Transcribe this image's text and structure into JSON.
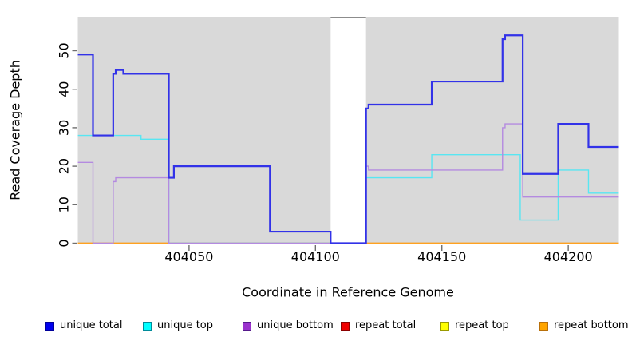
{
  "chart_data": {
    "type": "line",
    "step": true,
    "title": "",
    "xlabel": "Coordinate in Reference Genome",
    "ylabel": "Read Coverage Depth",
    "xlim": [
      404006,
      404220
    ],
    "ylim": [
      0,
      59
    ],
    "xticks": [
      404050,
      404100,
      404150,
      404200
    ],
    "yticks": [
      0,
      10,
      20,
      30,
      40,
      50
    ],
    "grid": "off",
    "plot_bg": "#d9d9d9",
    "tick_color": "#6e6e6e",
    "gap": {
      "x_start": 404106,
      "x_end": 404120,
      "fill": "#ffffff",
      "top_border": "#8c8c8c",
      "note": "white masked region; unique-total line crosses it at depth 0"
    },
    "zero_overlap_highlight": {
      "x_start": 404042,
      "x_end": 404106,
      "color": "#8fd89f",
      "note": "unique-top and repeat lines overlap at depth 0, rendering light green"
    },
    "series": [
      {
        "name": "unique total",
        "color": "#3232e8",
        "width": 2.2,
        "segments": [
          {
            "points": [
              [
                404006,
                49
              ],
              [
                404012,
                28
              ],
              [
                404020,
                44
              ],
              [
                404021,
                45
              ],
              [
                404024,
                44
              ],
              [
                404042,
                17
              ],
              [
                404044,
                20
              ],
              [
                404082,
                3
              ],
              [
                404106,
                0
              ],
              [
                404120,
                35
              ],
              [
                404121,
                36
              ],
              [
                404146,
                42
              ],
              [
                404174,
                53
              ],
              [
                404175,
                54
              ],
              [
                404182,
                18
              ],
              [
                404196,
                31
              ],
              [
                404208,
                25
              ]
            ],
            "end": 404220
          }
        ]
      },
      {
        "name": "unique top",
        "color": "#58e6f2",
        "width": 1.4,
        "segments": [
          {
            "points": [
              [
                404006,
                28
              ],
              [
                404031,
                27
              ],
              [
                404042,
                0
              ]
            ],
            "end": 404106
          },
          {
            "points": [
              [
                404120,
                17
              ],
              [
                404146,
                23
              ],
              [
                404181,
                6
              ],
              [
                404196,
                19
              ],
              [
                404208,
                13
              ]
            ],
            "end": 404220
          }
        ]
      },
      {
        "name": "unique bottom",
        "color": "#b48ae0",
        "width": 1.4,
        "segments": [
          {
            "points": [
              [
                404006,
                21
              ],
              [
                404012,
                0
              ],
              [
                404020,
                16
              ],
              [
                404021,
                17
              ],
              [
                404042,
                0
              ]
            ],
            "end": 404106
          },
          {
            "points": [
              [
                404120,
                20
              ],
              [
                404121,
                19
              ],
              [
                404174,
                30
              ],
              [
                404175,
                31
              ],
              [
                404182,
                12
              ]
            ],
            "end": 404220
          }
        ]
      },
      {
        "name": "repeat total",
        "color": "#e00000",
        "width": 1.3,
        "segments": [
          {
            "points": [
              [
                404006,
                0
              ]
            ],
            "end": 404106
          },
          {
            "points": [
              [
                404120,
                0
              ]
            ],
            "end": 404220
          }
        ]
      },
      {
        "name": "repeat top",
        "color": "#ffff00",
        "width": 1.3,
        "segments": [
          {
            "points": [
              [
                404006,
                0
              ]
            ],
            "end": 404106
          },
          {
            "points": [
              [
                404120,
                0
              ]
            ],
            "end": 404220
          }
        ]
      },
      {
        "name": "repeat bottom",
        "color": "#ffa120",
        "width": 1.6,
        "segments": [
          {
            "points": [
              [
                404006,
                0
              ]
            ],
            "end": 404106
          },
          {
            "points": [
              [
                404120,
                0
              ]
            ],
            "end": 404220
          }
        ]
      }
    ],
    "legend": [
      {
        "label": "unique total",
        "fill": "#0000ee",
        "border": "#00009a"
      },
      {
        "label": "unique top",
        "fill": "#00ffff",
        "border": "#008b9a"
      },
      {
        "label": "unique bottom",
        "fill": "#9a32cd",
        "border": "#551a8b"
      },
      {
        "label": "repeat total",
        "fill": "#ee0000",
        "border": "#8b0000"
      },
      {
        "label": "repeat top",
        "fill": "#ffff00",
        "border": "#9a9a00"
      },
      {
        "label": "repeat bottom",
        "fill": "#ffa500",
        "border": "#b8700b"
      }
    ],
    "legend_position": "bottom"
  }
}
